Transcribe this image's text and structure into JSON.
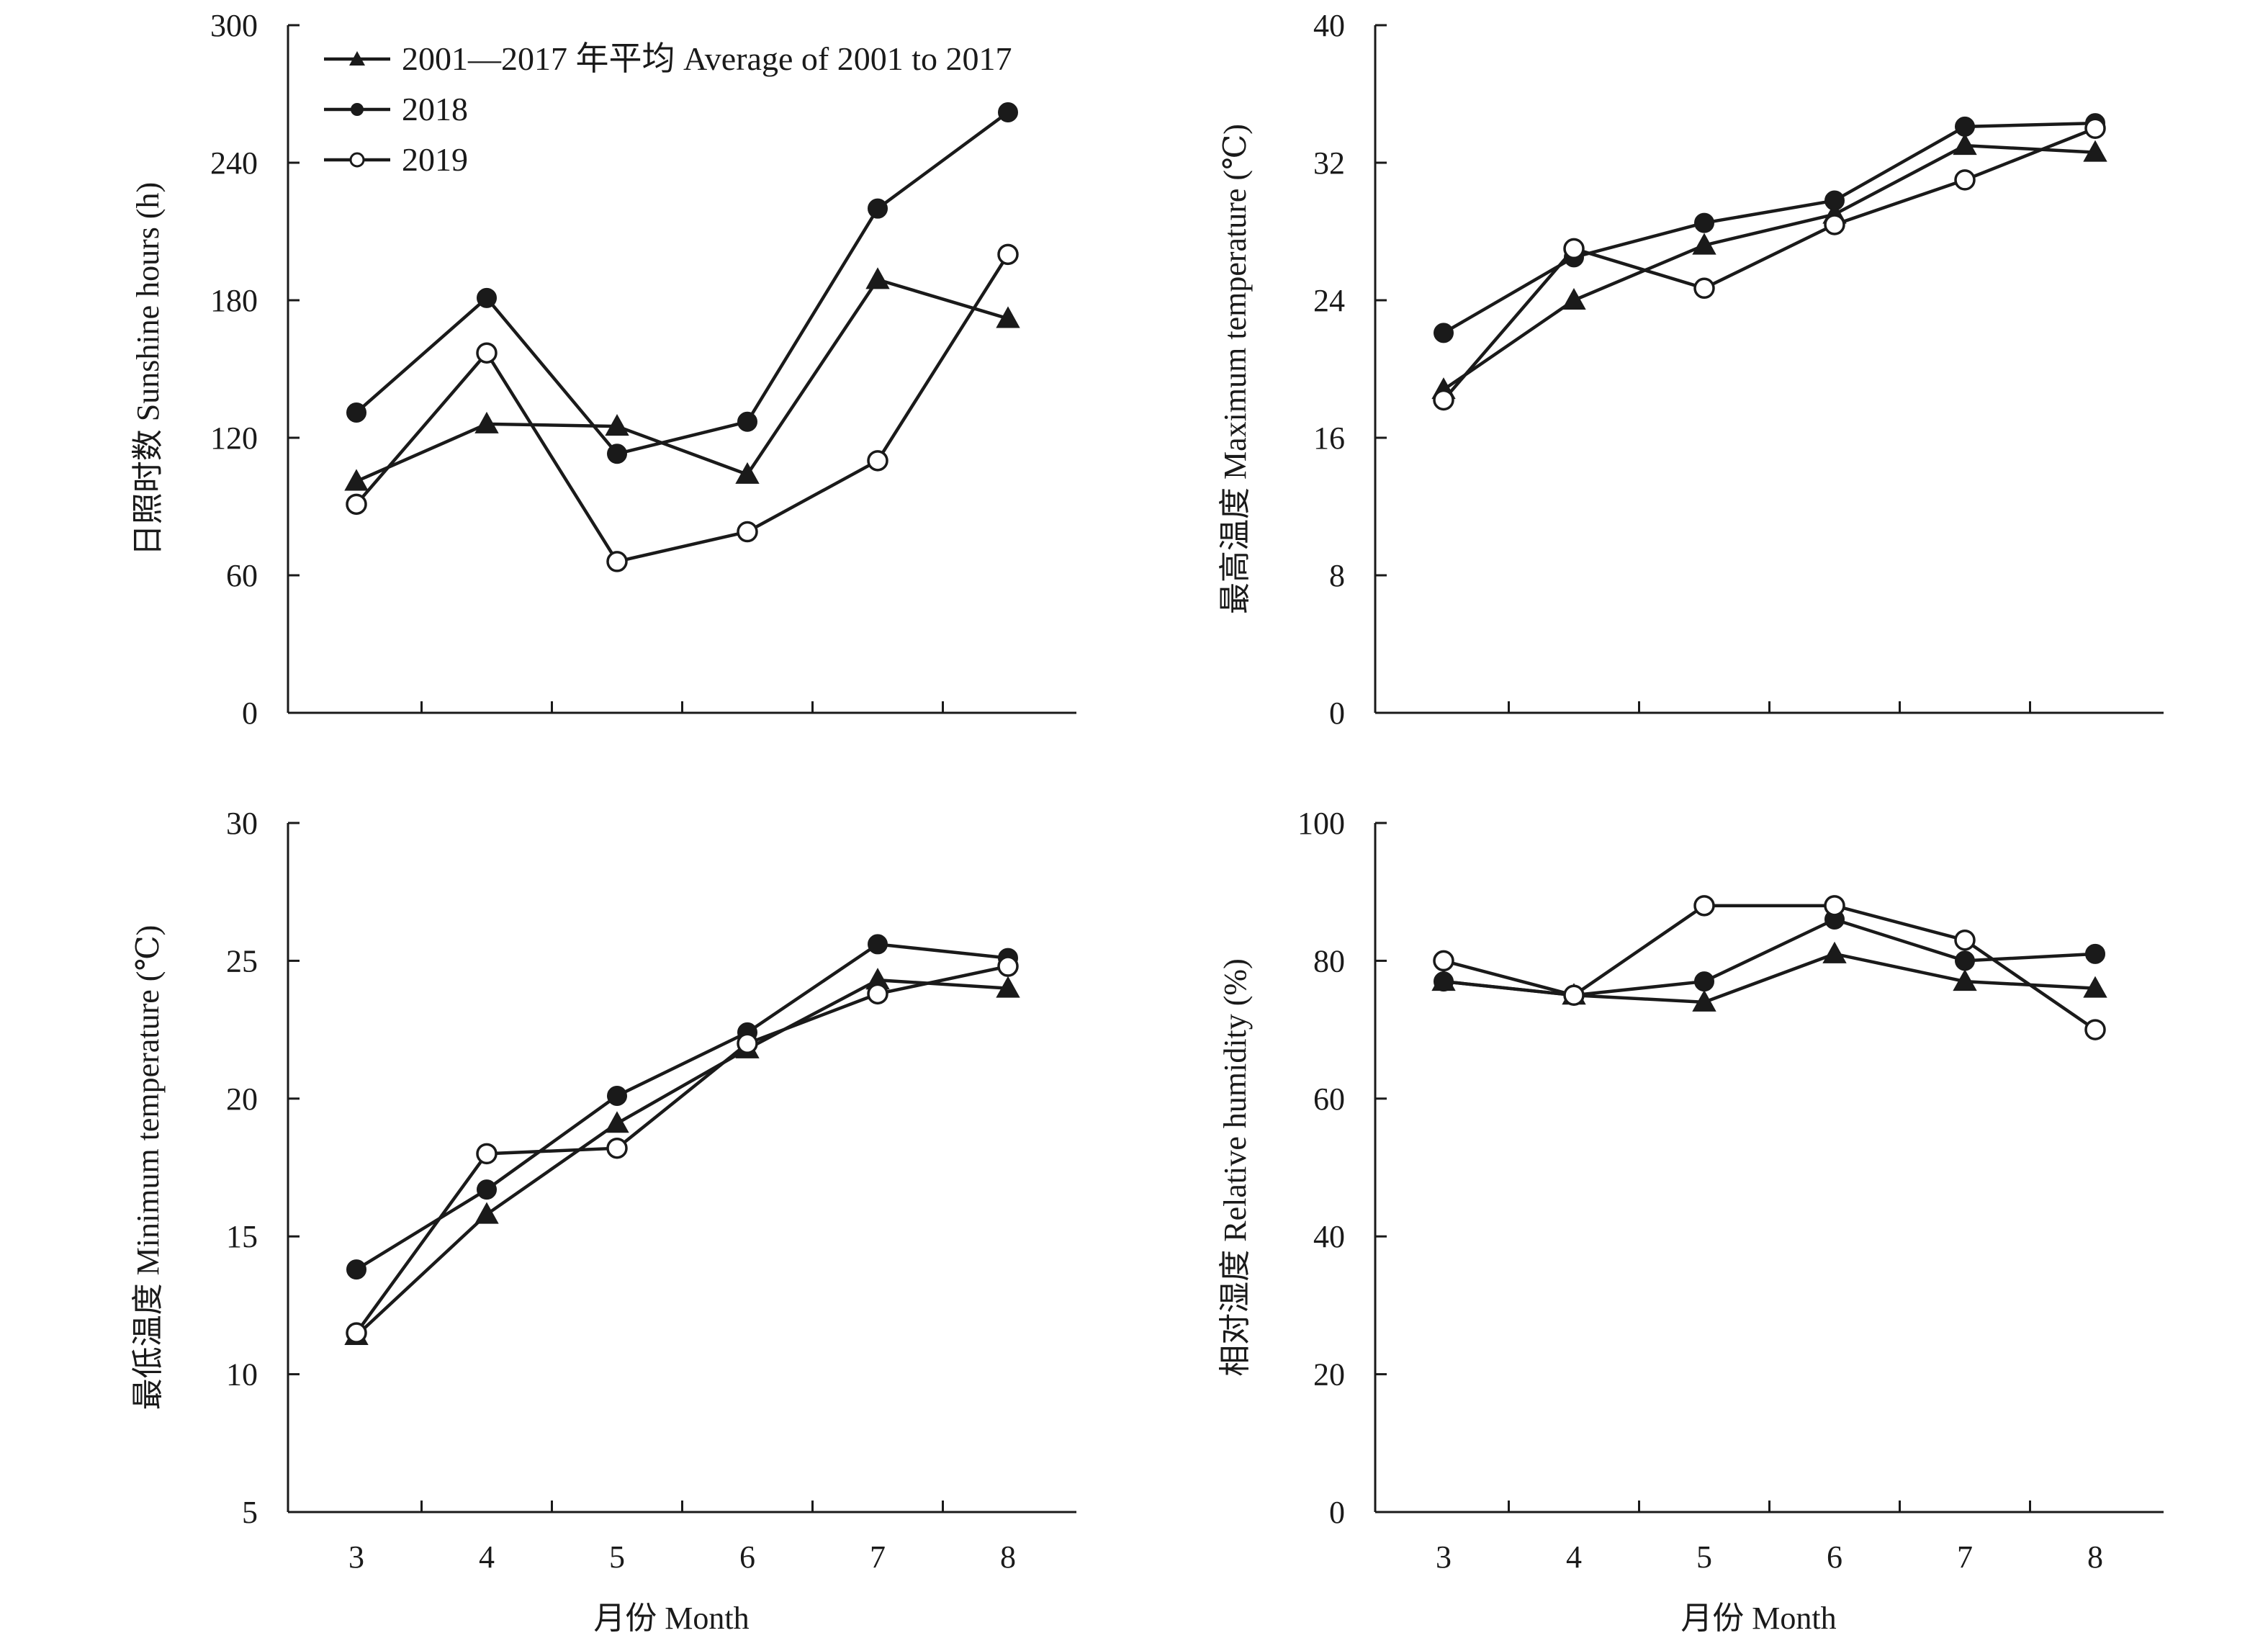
{
  "figure": {
    "x_title": "月份 Month"
  },
  "legend": [
    {
      "label": "2001—2017 年平均 Average of 2001 to 2017",
      "marker": "triangle"
    },
    {
      "label": "2018",
      "marker": "filled-circle"
    },
    {
      "label": "2019",
      "marker": "open-circle"
    }
  ],
  "colors": {
    "ink": "#1a1a1a",
    "background": "#ffffff"
  },
  "chart_data": [
    {
      "type": "line",
      "title": "",
      "xlabel": "",
      "ylabel": "日照时数 Sunshine hours (h)",
      "x": [
        3,
        4,
        5,
        6,
        7,
        8
      ],
      "ylim": [
        0,
        300
      ],
      "yticks": [
        0,
        60,
        120,
        180,
        240,
        300
      ],
      "legend_position": "top-left",
      "grid": false,
      "series": [
        {
          "name": "2001—2017 年平均 Average of 2001 to 2017",
          "marker": "triangle",
          "values": [
            101,
            126,
            125,
            104,
            189,
            172
          ]
        },
        {
          "name": "2018",
          "marker": "filled-circle",
          "values": [
            131,
            181,
            113,
            127,
            220,
            262
          ]
        },
        {
          "name": "2019",
          "marker": "open-circle",
          "values": [
            91,
            157,
            66,
            79,
            110,
            200
          ]
        }
      ]
    },
    {
      "type": "line",
      "title": "",
      "xlabel": "",
      "ylabel": "最高温度 Maximum temperature (℃)",
      "x": [
        3,
        4,
        5,
        6,
        7,
        8
      ],
      "ylim": [
        0,
        40
      ],
      "yticks": [
        0,
        8,
        16,
        24,
        32,
        40
      ],
      "grid": false,
      "series": [
        {
          "name": "2001—2017 年平均 Average of 2001 to 2017",
          "marker": "triangle",
          "values": [
            18.8,
            24.0,
            27.2,
            29.0,
            33.0,
            32.6
          ]
        },
        {
          "name": "2018",
          "marker": "filled-circle",
          "values": [
            22.1,
            26.5,
            28.5,
            29.8,
            34.1,
            34.3
          ]
        },
        {
          "name": "2019",
          "marker": "open-circle",
          "values": [
            18.2,
            27.0,
            24.7,
            28.4,
            31.0,
            34.0
          ]
        }
      ]
    },
    {
      "type": "line",
      "title": "",
      "xlabel": "月份 Month",
      "ylabel": "最低温度 Minimum temperature (℃)",
      "x": [
        3,
        4,
        5,
        6,
        7,
        8
      ],
      "xticks": [
        3,
        4,
        5,
        6,
        7,
        8
      ],
      "ylim": [
        5,
        30
      ],
      "yticks": [
        5,
        10,
        15,
        20,
        25,
        30
      ],
      "grid": false,
      "series": [
        {
          "name": "2001—2017 年平均 Average of 2001 to 2017",
          "marker": "triangle",
          "values": [
            11.4,
            15.8,
            19.1,
            21.8,
            24.3,
            24.0
          ]
        },
        {
          "name": "2018",
          "marker": "filled-circle",
          "values": [
            13.8,
            16.7,
            20.1,
            22.4,
            25.6,
            25.1
          ]
        },
        {
          "name": "2019",
          "marker": "open-circle",
          "values": [
            11.5,
            18.0,
            18.2,
            22.0,
            23.8,
            24.8
          ]
        }
      ]
    },
    {
      "type": "line",
      "title": "",
      "xlabel": "月份 Month",
      "ylabel": "相对湿度 Relative humidity (%)",
      "x": [
        3,
        4,
        5,
        6,
        7,
        8
      ],
      "xticks": [
        3,
        4,
        5,
        6,
        7,
        8
      ],
      "ylim": [
        0,
        100
      ],
      "yticks": [
        0,
        20,
        40,
        60,
        80,
        100
      ],
      "grid": false,
      "series": [
        {
          "name": "2001—2017 年平均 Average of 2001 to 2017",
          "marker": "triangle",
          "values": [
            77,
            75,
            74,
            81,
            77,
            76
          ]
        },
        {
          "name": "2018",
          "marker": "filled-circle",
          "values": [
            77,
            75,
            77,
            86,
            80,
            81
          ]
        },
        {
          "name": "2019",
          "marker": "open-circle",
          "values": [
            80,
            75,
            88,
            88,
            83,
            70
          ]
        }
      ]
    }
  ]
}
